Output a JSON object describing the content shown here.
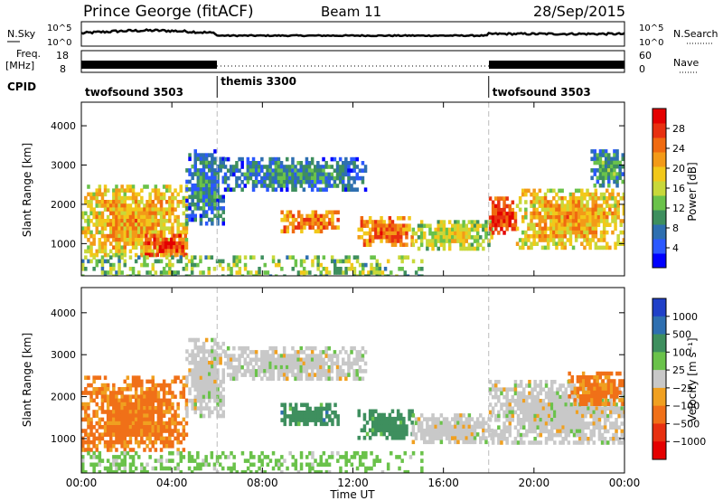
{
  "header": {
    "station": "Prince George (fitACF)",
    "beam": "Beam 11",
    "date": "28/Sep/2015"
  },
  "summary_panels": {
    "nsky_label": "N.Sky",
    "nsky_top_tick": "10^5",
    "nsky_bottom_tick": "10^0",
    "nsearch_label": "N.Search",
    "nsearch_top_tick": "10^5",
    "nsearch_bottom_tick": "10^0",
    "freq_label": "Freq.",
    "freq_unit": "[MHz]",
    "freq_top_tick": "18",
    "freq_bottom_tick": "8",
    "nave_label": "Nave",
    "nave_top_tick": "60",
    "nave_bottom_tick": "0",
    "cpid_label": "CPID",
    "cpid_segments": [
      {
        "name": "twofsound 3503",
        "start_hour": 0,
        "end_hour": 6
      },
      {
        "name": "themis 3300",
        "start_hour": 6,
        "end_hour": 18
      },
      {
        "name": "twofsound 3503",
        "start_hour": 18,
        "end_hour": 24
      }
    ]
  },
  "chart_data": [
    {
      "type": "heatmap",
      "title": "",
      "xlabel": "",
      "ylabel": "Slant Range [km]",
      "xlim": [
        0,
        24
      ],
      "ylim": [
        180,
        4600
      ],
      "yticks": [
        "1000",
        "2000",
        "3000",
        "4000"
      ],
      "colorbar": {
        "label": "Power [dB]",
        "range": [
          0,
          32
        ],
        "ticks": [
          "4",
          "8",
          "12",
          "16",
          "20",
          "24",
          "28"
        ],
        "colors": [
          "#0000ff",
          "#2b58ff",
          "#2e6fb0",
          "#3e8f5e",
          "#6ac24a",
          "#c8d83a",
          "#f2c81a",
          "#f39a18",
          "#f06a10",
          "#e83010",
          "#e40000"
        ]
      },
      "regions": [
        {
          "t": [
            0.0,
            4.6
          ],
          "r": [
            700,
            2500
          ],
          "v": 18
        },
        {
          "t": [
            2.8,
            4.6
          ],
          "r": [
            750,
            1250
          ],
          "v": 26
        },
        {
          "t": [
            4.6,
            6.3
          ],
          "r": [
            1500,
            3400
          ],
          "v": 6
        },
        {
          "t": [
            6.3,
            12.5
          ],
          "r": [
            2400,
            3200
          ],
          "v": 6
        },
        {
          "t": [
            8.8,
            11.3
          ],
          "r": [
            1350,
            1850
          ],
          "v": 22
        },
        {
          "t": [
            12.2,
            14.6
          ],
          "r": [
            1000,
            1700
          ],
          "v": 22
        },
        {
          "t": [
            14.6,
            18.1
          ],
          "r": [
            900,
            1600
          ],
          "v": 14
        },
        {
          "t": [
            18.0,
            19.2
          ],
          "r": [
            1300,
            2200
          ],
          "v": 26
        },
        {
          "t": [
            19.2,
            24.0
          ],
          "r": [
            900,
            2400
          ],
          "v": 18
        },
        {
          "t": [
            22.5,
            24.0
          ],
          "r": [
            2500,
            3400
          ],
          "v": 8
        },
        {
          "t": [
            0.0,
            15.0
          ],
          "r": [
            180,
            700
          ],
          "v": 12
        }
      ]
    },
    {
      "type": "heatmap",
      "title": "",
      "xlabel": "Time UT",
      "ylabel": "Slant Range [km]",
      "xlim": [
        0,
        24
      ],
      "ylim": [
        180,
        4600
      ],
      "xticks": [
        "00:00",
        "04:00",
        "08:00",
        "12:00",
        "16:00",
        "20:00",
        "00:00"
      ],
      "yticks": [
        "1000",
        "2000",
        "3000",
        "4000"
      ],
      "colorbar": {
        "label": "Velocity [m s⁻¹]",
        "range": [
          -1200,
          1200
        ],
        "ticks": [
          "1000",
          "500",
          "100",
          "25",
          "−25",
          "−100",
          "−500",
          "−1000"
        ],
        "colors": [
          "#2040c8",
          "#2e6fb0",
          "#3e8f5e",
          "#6ac24a",
          "#c8c8c8",
          "#f0a020",
          "#f07018",
          "#e83010",
          "#e40000"
        ]
      },
      "regions": [
        {
          "t": [
            0.0,
            4.6
          ],
          "r": [
            700,
            2500
          ],
          "v": -150
        },
        {
          "t": [
            4.6,
            6.3
          ],
          "r": [
            1500,
            3400
          ],
          "v": 0
        },
        {
          "t": [
            6.3,
            12.5
          ],
          "r": [
            2400,
            3200
          ],
          "v": 0
        },
        {
          "t": [
            8.8,
            11.3
          ],
          "r": [
            1350,
            1850
          ],
          "v": 300
        },
        {
          "t": [
            12.2,
            14.6
          ],
          "r": [
            1000,
            1700
          ],
          "v": 300
        },
        {
          "t": [
            14.6,
            18.1
          ],
          "r": [
            900,
            1600
          ],
          "v": 0
        },
        {
          "t": [
            18.0,
            24.0
          ],
          "r": [
            900,
            2400
          ],
          "v": 0
        },
        {
          "t": [
            21.5,
            24.0
          ],
          "r": [
            1800,
            2600
          ],
          "v": -150
        },
        {
          "t": [
            0.0,
            15.0
          ],
          "r": [
            180,
            700
          ],
          "v": 50
        }
      ]
    }
  ]
}
